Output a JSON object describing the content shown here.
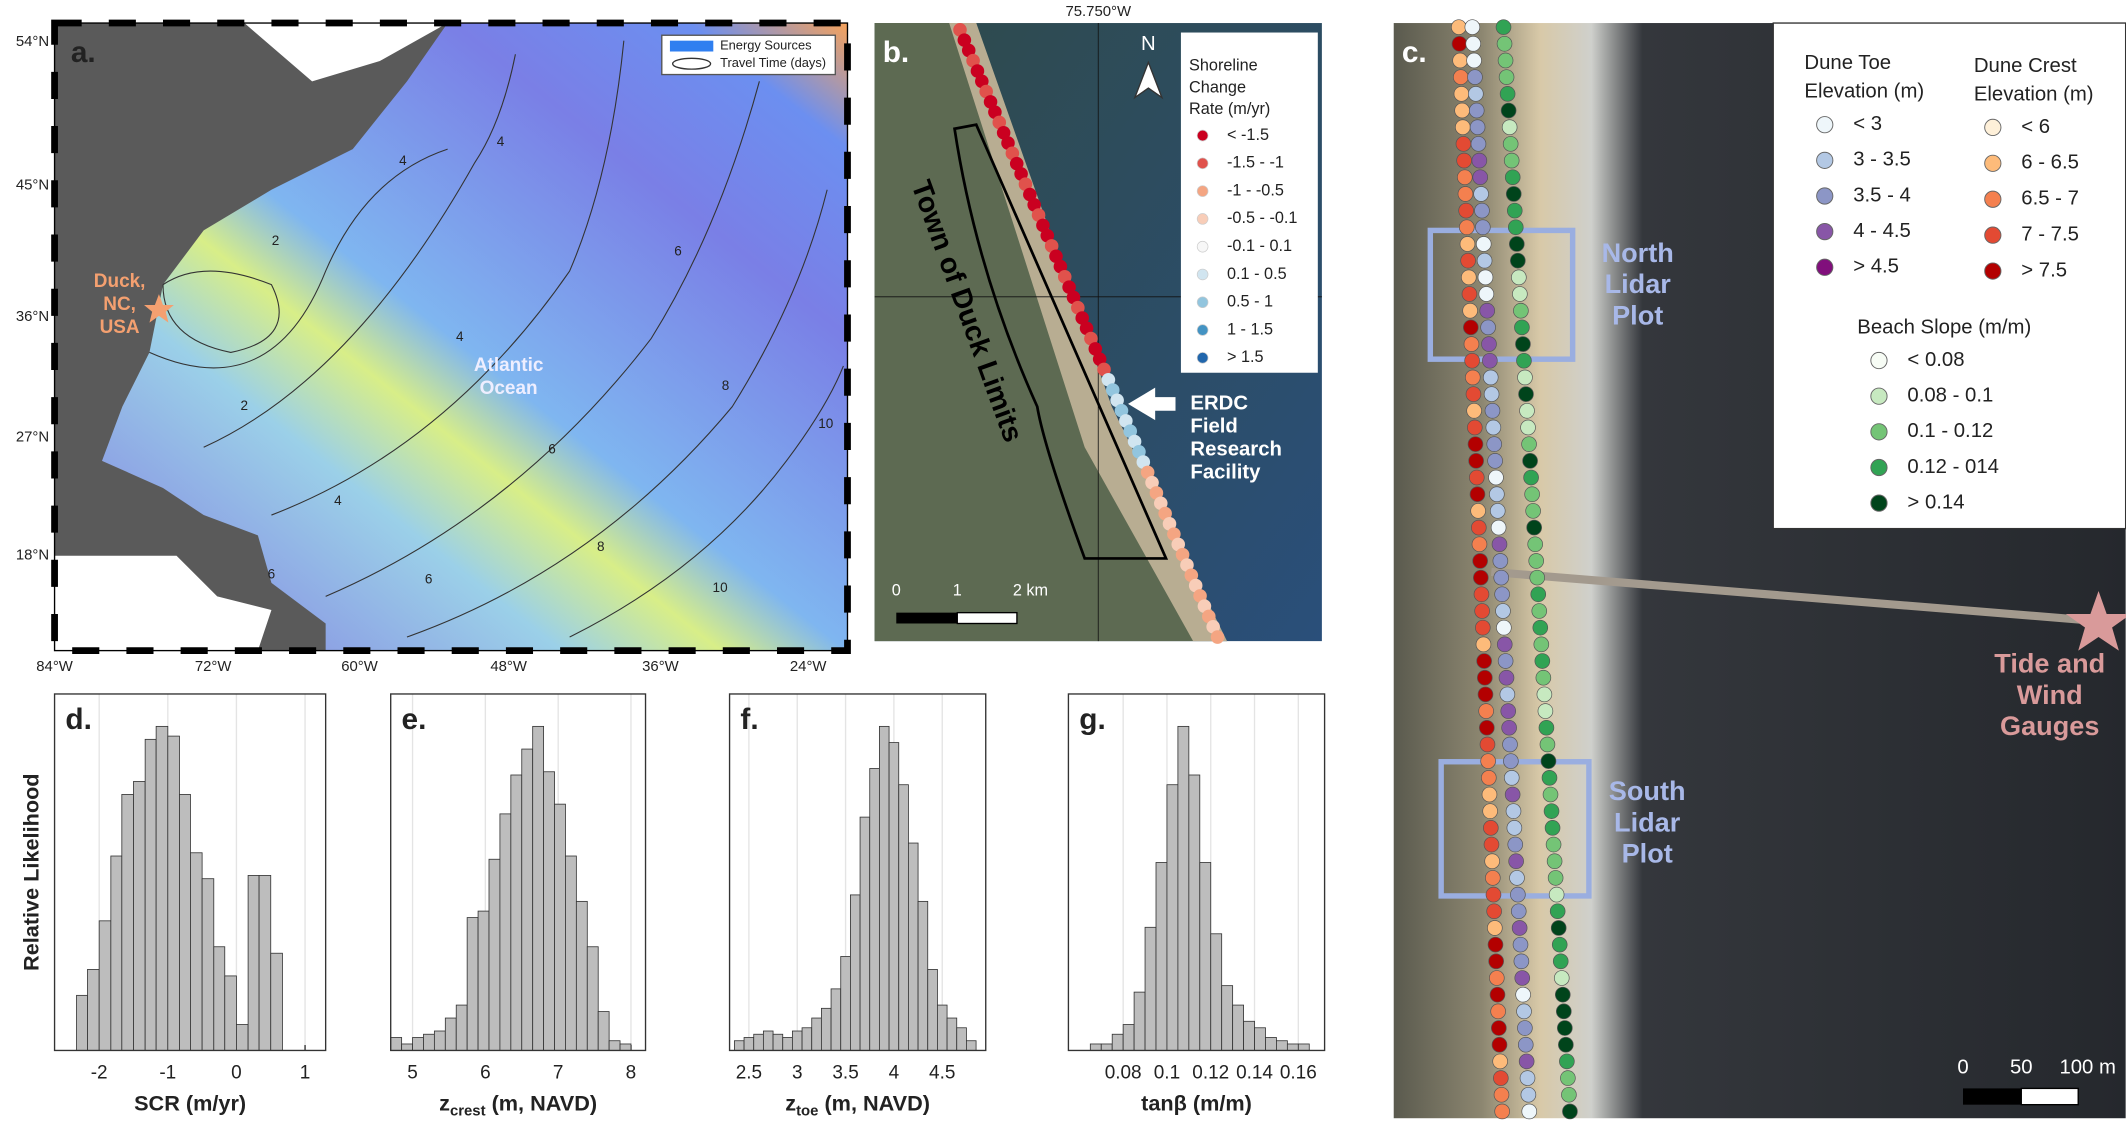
{
  "panel_a": {
    "label": "a.",
    "lat_ticks": [
      "54°N",
      "45°N",
      "36°N",
      "27°N",
      "18°N"
    ],
    "lon_ticks": [
      "84°W",
      "72°W",
      "60°W",
      "48°W",
      "36°W",
      "24°W"
    ],
    "place": [
      "Duck,",
      "NC,",
      "USA"
    ],
    "ocean": [
      "Atlantic",
      "Ocean"
    ],
    "legend": [
      "Energy Sources",
      "Travel Time (days)"
    ],
    "contour_labels": [
      "4",
      "4",
      "2",
      "6",
      "4",
      "2",
      "6",
      "8",
      "4",
      "6",
      "8",
      "10",
      "10",
      "6"
    ]
  },
  "panel_b": {
    "label": "b.",
    "lon_label": "75.750°W",
    "north": "N",
    "legend_title": [
      "Shoreline",
      "Change",
      "Rate (m/yr)"
    ],
    "legend": [
      {
        "label": "< -1.5",
        "color": "#ca0020"
      },
      {
        "label": "-1.5 - -1",
        "color": "#e0524c"
      },
      {
        "label": "-1 - -0.5",
        "color": "#f4a582"
      },
      {
        "label": "-0.5 - -0.1",
        "color": "#f8cdb8"
      },
      {
        "label": "-0.1 - 0.1",
        "color": "#f7f7f7"
      },
      {
        "label": "0.1 - 0.5",
        "color": "#d1e5f0"
      },
      {
        "label": "0.5 - 1",
        "color": "#92c5de"
      },
      {
        "label": "1 - 1.5",
        "color": "#4393c3"
      },
      {
        "label": "> 1.5",
        "color": "#2166ac"
      }
    ],
    "town": "Town of Duck Limits",
    "facility": [
      "ERDC",
      "Field",
      "Research",
      "Facility"
    ],
    "scale": [
      "0",
      "1",
      "2 km"
    ]
  },
  "panel_c": {
    "label": "c.",
    "toe_title": [
      "Dune Toe",
      "Elevation (m)"
    ],
    "toe": [
      {
        "label": "< 3",
        "color": "#eef6fa"
      },
      {
        "label": "3 - 3.5",
        "color": "#b3c8e4"
      },
      {
        "label": "3.5 - 4",
        "color": "#8c96c6"
      },
      {
        "label": "4 - 4.5",
        "color": "#8856a7"
      },
      {
        "label": "> 4.5",
        "color": "#810f7c"
      }
    ],
    "crest_title": [
      "Dune Crest",
      "Elevation (m)"
    ],
    "crest": [
      {
        "label": "< 6",
        "color": "#fef0d9"
      },
      {
        "label": "6 - 6.5",
        "color": "#fdbb7a"
      },
      {
        "label": "6.5 - 7",
        "color": "#f4804f"
      },
      {
        "label": "7 - 7.5",
        "color": "#e34a33"
      },
      {
        "label": "> 7.5",
        "color": "#b30000"
      }
    ],
    "slope_title": "Beach Slope (m/m)",
    "slope": [
      {
        "label": "< 0.08",
        "color": "#f7fcf5"
      },
      {
        "label": "0.08 - 0.1",
        "color": "#c7e9c0"
      },
      {
        "label": "0.1 - 0.12",
        "color": "#74c476"
      },
      {
        "label": "0.12 - 014",
        "color": "#31a354"
      },
      {
        "label": "> 0.14",
        "color": "#00441b"
      }
    ],
    "north_plot": [
      "North",
      "Lidar",
      "Plot"
    ],
    "south_plot": [
      "South",
      "Lidar",
      "Plot"
    ],
    "gauges": [
      "Tide and",
      "Wind",
      "Gauges"
    ],
    "scale": [
      "0",
      "50",
      "100 m"
    ]
  },
  "chart_data": [
    {
      "type": "histogram",
      "label": "d.",
      "y_label": "Relative Likelihood",
      "x_label": "SCR (m/yr)",
      "color": "#bdbdbd",
      "grid": true,
      "xlim": [
        -2.65,
        1.3
      ],
      "xticks": [
        -2,
        -1,
        0,
        1
      ],
      "ylim": [
        0,
        110
      ],
      "bins": [
        -2.33,
        -2.17,
        -2.0,
        -1.83,
        -1.67,
        -1.5,
        -1.33,
        -1.17,
        -1.0,
        -0.83,
        -0.67,
        -0.5,
        -0.33,
        -0.17,
        0,
        0.17,
        0.33,
        0.5,
        0.67
      ],
      "values": [
        17,
        25,
        40,
        60,
        79,
        83,
        96,
        100,
        97,
        79,
        61,
        53,
        32,
        23,
        8,
        54,
        54,
        30
      ]
    },
    {
      "type": "histogram",
      "label": "e.",
      "x_label": {
        "main": "z",
        "sub": "crest",
        "rest": " (m, NAVD)"
      },
      "color": "#bdbdbd",
      "grid": true,
      "xlim": [
        4.7,
        8.2
      ],
      "xticks": [
        5,
        6,
        7,
        8
      ],
      "ylim": [
        0,
        110
      ],
      "bins": [
        4.7,
        4.85,
        5.0,
        5.15,
        5.3,
        5.45,
        5.6,
        5.75,
        5.9,
        6.05,
        6.2,
        6.35,
        6.5,
        6.65,
        6.8,
        6.95,
        7.1,
        7.25,
        7.4,
        7.55,
        7.7,
        7.85,
        8.0
      ],
      "values": [
        4,
        2,
        4,
        5,
        6,
        10,
        14,
        41,
        43,
        59,
        73,
        85,
        93,
        100,
        86,
        76,
        60,
        46,
        32,
        12,
        3,
        2
      ]
    },
    {
      "type": "histogram",
      "label": "f.",
      "x_label": {
        "main": "z",
        "sub": "toe",
        "rest": " (m, NAVD)"
      },
      "color": "#bdbdbd",
      "grid": true,
      "xlim": [
        2.3,
        4.95
      ],
      "xticks": [
        2.5,
        3,
        3.5,
        4,
        4.5
      ],
      "ylim": [
        0,
        110
      ],
      "bins": [
        2.35,
        2.45,
        2.55,
        2.65,
        2.75,
        2.85,
        2.95,
        3.05,
        3.15,
        3.25,
        3.35,
        3.45,
        3.55,
        3.65,
        3.75,
        3.85,
        3.95,
        4.05,
        4.15,
        4.25,
        4.35,
        4.45,
        4.55,
        4.65,
        4.75,
        4.85
      ],
      "values": [
        3,
        4,
        5,
        6,
        5,
        4,
        6,
        7,
        10,
        13,
        19,
        29,
        48,
        72,
        87,
        100,
        95,
        82,
        64,
        46,
        25,
        14,
        10,
        7,
        3
      ]
    },
    {
      "type": "histogram",
      "label": "g.",
      "x_label": "tanβ (m/m)",
      "color": "#bdbdbd",
      "grid": true,
      "xlim": [
        0.055,
        0.172
      ],
      "xticks": [
        0.08,
        0.1,
        0.12,
        0.14,
        0.16
      ],
      "ylim": [
        0,
        110
      ],
      "bins": [
        0.065,
        0.07,
        0.075,
        0.08,
        0.085,
        0.09,
        0.095,
        0.1,
        0.105,
        0.11,
        0.115,
        0.12,
        0.125,
        0.13,
        0.135,
        0.14,
        0.145,
        0.15,
        0.155,
        0.16,
        0.165
      ],
      "values": [
        2,
        2,
        5,
        8,
        18,
        38,
        58,
        82,
        100,
        85,
        58,
        36,
        20,
        14,
        9,
        7,
        4,
        3,
        2,
        2
      ]
    }
  ]
}
